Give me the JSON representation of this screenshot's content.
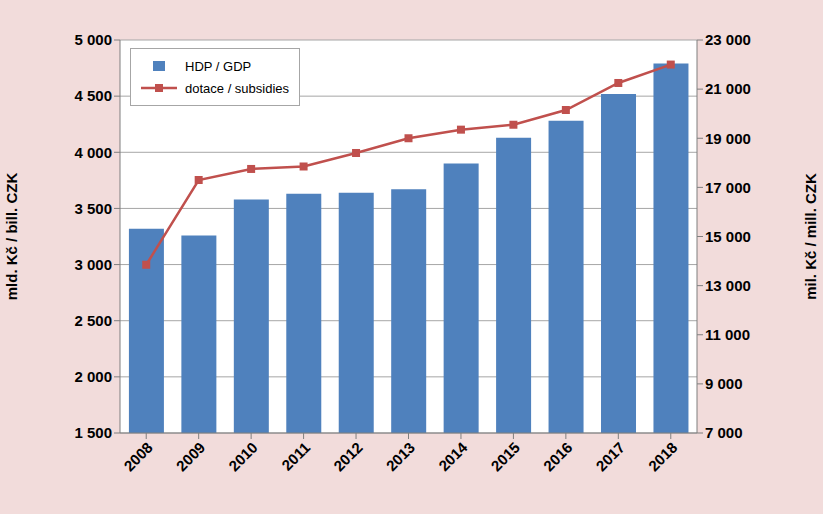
{
  "chart_data": {
    "type": "bar",
    "categories": [
      "2008",
      "2009",
      "2010",
      "2011",
      "2012",
      "2013",
      "2014",
      "2015",
      "2016",
      "2017",
      "2018"
    ],
    "series": [
      {
        "name": "HDP / GDP",
        "type": "bar",
        "color": "#4f81bd",
        "values": [
          3320,
          3260,
          3580,
          3630,
          3640,
          3670,
          3900,
          4130,
          4280,
          4520,
          4790
        ]
      },
      {
        "name": "dotace / subsidies",
        "type": "line",
        "axis": "y2",
        "color": "#c0504d",
        "marker": "square",
        "values": [
          13850,
          17300,
          17750,
          17850,
          18400,
          19000,
          19350,
          19550,
          20150,
          21250,
          22000
        ]
      }
    ],
    "y_label": "mld. Kč / bill. CZK",
    "y2_label": "mil. Kč / mill. CZK",
    "ylim": [
      1500,
      5000
    ],
    "yticks": [
      {
        "value": 1500,
        "label": "1 500"
      },
      {
        "value": 2000,
        "label": "2 000"
      },
      {
        "value": 2500,
        "label": "2 500"
      },
      {
        "value": 3000,
        "label": "3 000"
      },
      {
        "value": 3500,
        "label": "3 500"
      },
      {
        "value": 4000,
        "label": "4 000"
      },
      {
        "value": 4500,
        "label": "4 500"
      },
      {
        "value": 5000,
        "label": "5 000"
      }
    ],
    "y2lim": [
      7000,
      23000
    ],
    "y2ticks": [
      {
        "value": 7000,
        "label": "7 000"
      },
      {
        "value": 9000,
        "label": "9 000"
      },
      {
        "value": 11000,
        "label": "11 000"
      },
      {
        "value": 13000,
        "label": "13 000"
      },
      {
        "value": 15000,
        "label": "15 000"
      },
      {
        "value": 17000,
        "label": "17 000"
      },
      {
        "value": 19000,
        "label": "19 000"
      },
      {
        "value": 21000,
        "label": "21 000"
      },
      {
        "value": 23000,
        "label": "23 000"
      }
    ],
    "grid": true,
    "legend": "upper left"
  }
}
